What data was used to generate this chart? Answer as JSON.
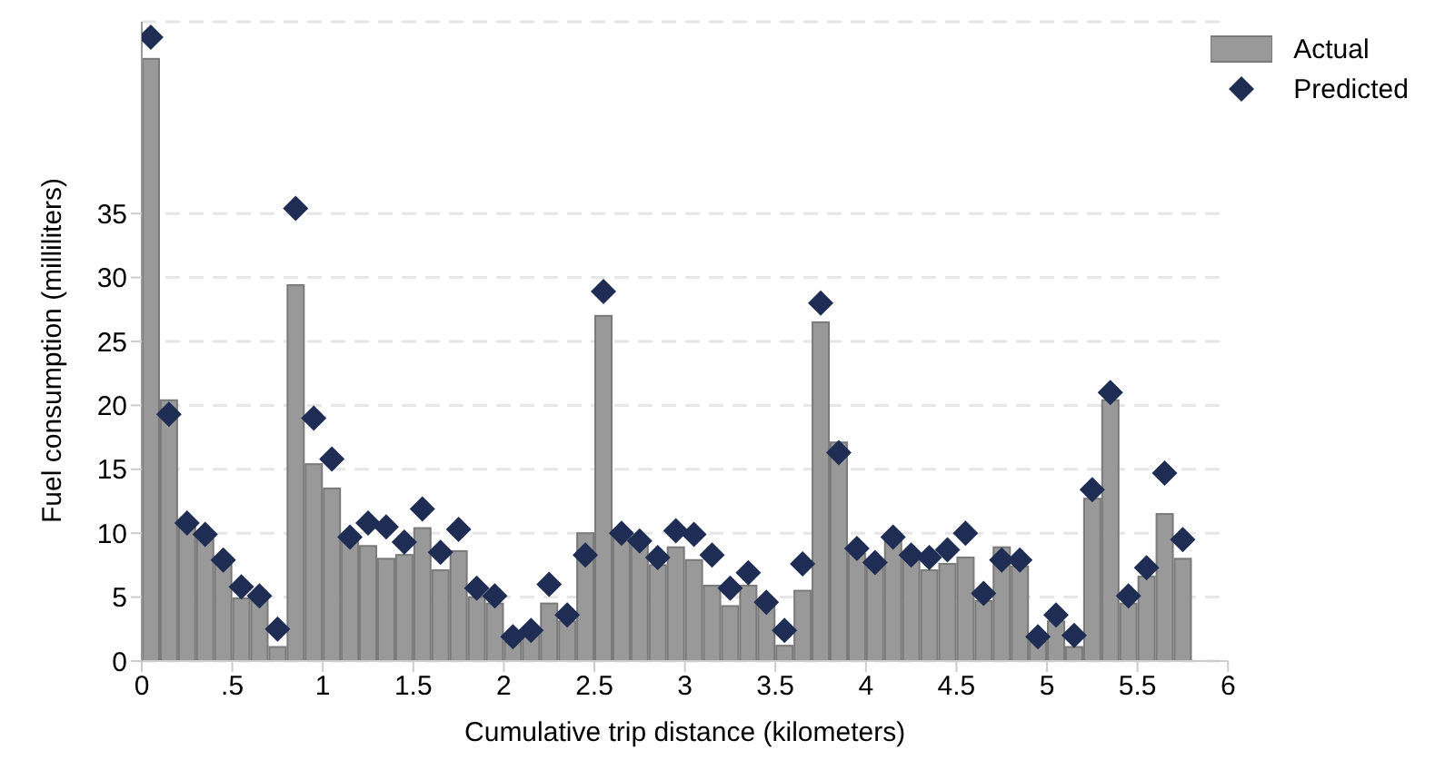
{
  "chart_data": {
    "type": "bar",
    "xlabel": "Cumulative trip distance (kilometers)",
    "ylabel": "Fuel consumption (milliliters)",
    "x": [
      0.05,
      0.15,
      0.25,
      0.35,
      0.45,
      0.55,
      0.65,
      0.75,
      0.85,
      0.95,
      1.05,
      1.15,
      1.25,
      1.35,
      1.45,
      1.55,
      1.65,
      1.75,
      1.85,
      1.95,
      2.05,
      2.15,
      2.25,
      2.35,
      2.45,
      2.55,
      2.65,
      2.75,
      2.85,
      2.95,
      3.05,
      3.15,
      3.25,
      3.35,
      3.45,
      3.55,
      3.65,
      3.75,
      3.85,
      3.95,
      4.05,
      4.15,
      4.25,
      4.35,
      4.45,
      4.55,
      4.65,
      4.75,
      4.85,
      4.95,
      5.05,
      5.15,
      5.25,
      5.35,
      5.45,
      5.55,
      5.65,
      5.75
    ],
    "series": [
      {
        "name": "Actual",
        "color": "#999999",
        "values": [
          47.1,
          20.4,
          11.0,
          9.9,
          7.8,
          4.9,
          4.9,
          1.1,
          29.4,
          15.4,
          13.5,
          9.4,
          9.0,
          8.0,
          8.3,
          10.4,
          7.1,
          8.6,
          5.0,
          4.5,
          1.5,
          2.2,
          4.5,
          3.1,
          10.0,
          27.0,
          9.8,
          9.1,
          7.5,
          8.9,
          7.9,
          5.9,
          4.3,
          5.9,
          4.3,
          1.2,
          5.5,
          26.5,
          17.1,
          8.4,
          7.3,
          9.4,
          8.0,
          7.1,
          7.6,
          8.1,
          4.7,
          8.9,
          7.4,
          1.5,
          3.1,
          1.1,
          12.7,
          20.4,
          4.5,
          6.6,
          11.5,
          8.0
        ]
      },
      {
        "name": "Predicted",
        "type": "scatter",
        "color": "#1f2d54",
        "values": [
          48.8,
          19.3,
          10.8,
          9.9,
          7.9,
          5.8,
          5.1,
          2.5,
          35.4,
          19.0,
          15.8,
          9.7,
          10.8,
          10.5,
          9.3,
          11.9,
          8.5,
          10.3,
          5.7,
          5.1,
          1.9,
          2.4,
          6.0,
          3.6,
          8.3,
          28.9,
          10.0,
          9.4,
          8.1,
          10.2,
          9.9,
          8.3,
          5.7,
          6.9,
          4.6,
          2.4,
          7.6,
          28.0,
          16.3,
          8.8,
          7.7,
          9.7,
          8.3,
          8.1,
          8.7,
          10.0,
          5.3,
          7.9,
          7.9,
          1.9,
          3.6,
          2.0,
          13.4,
          21.0,
          5.1,
          7.3,
          14.7,
          9.5
        ]
      }
    ],
    "marker": "diamond",
    "xlim": [
      0,
      6
    ],
    "xticks": [
      0,
      {
        "value": 0.5,
        "label": ".5"
      },
      1,
      1.5,
      2,
      2.5,
      3,
      3.5,
      4,
      4.5,
      5,
      5.5,
      6
    ],
    "ylim": [
      0,
      50
    ],
    "yticks": [
      0,
      5,
      10,
      15,
      20,
      25,
      30,
      35
    ],
    "grid": "y",
    "legend": "top right"
  }
}
